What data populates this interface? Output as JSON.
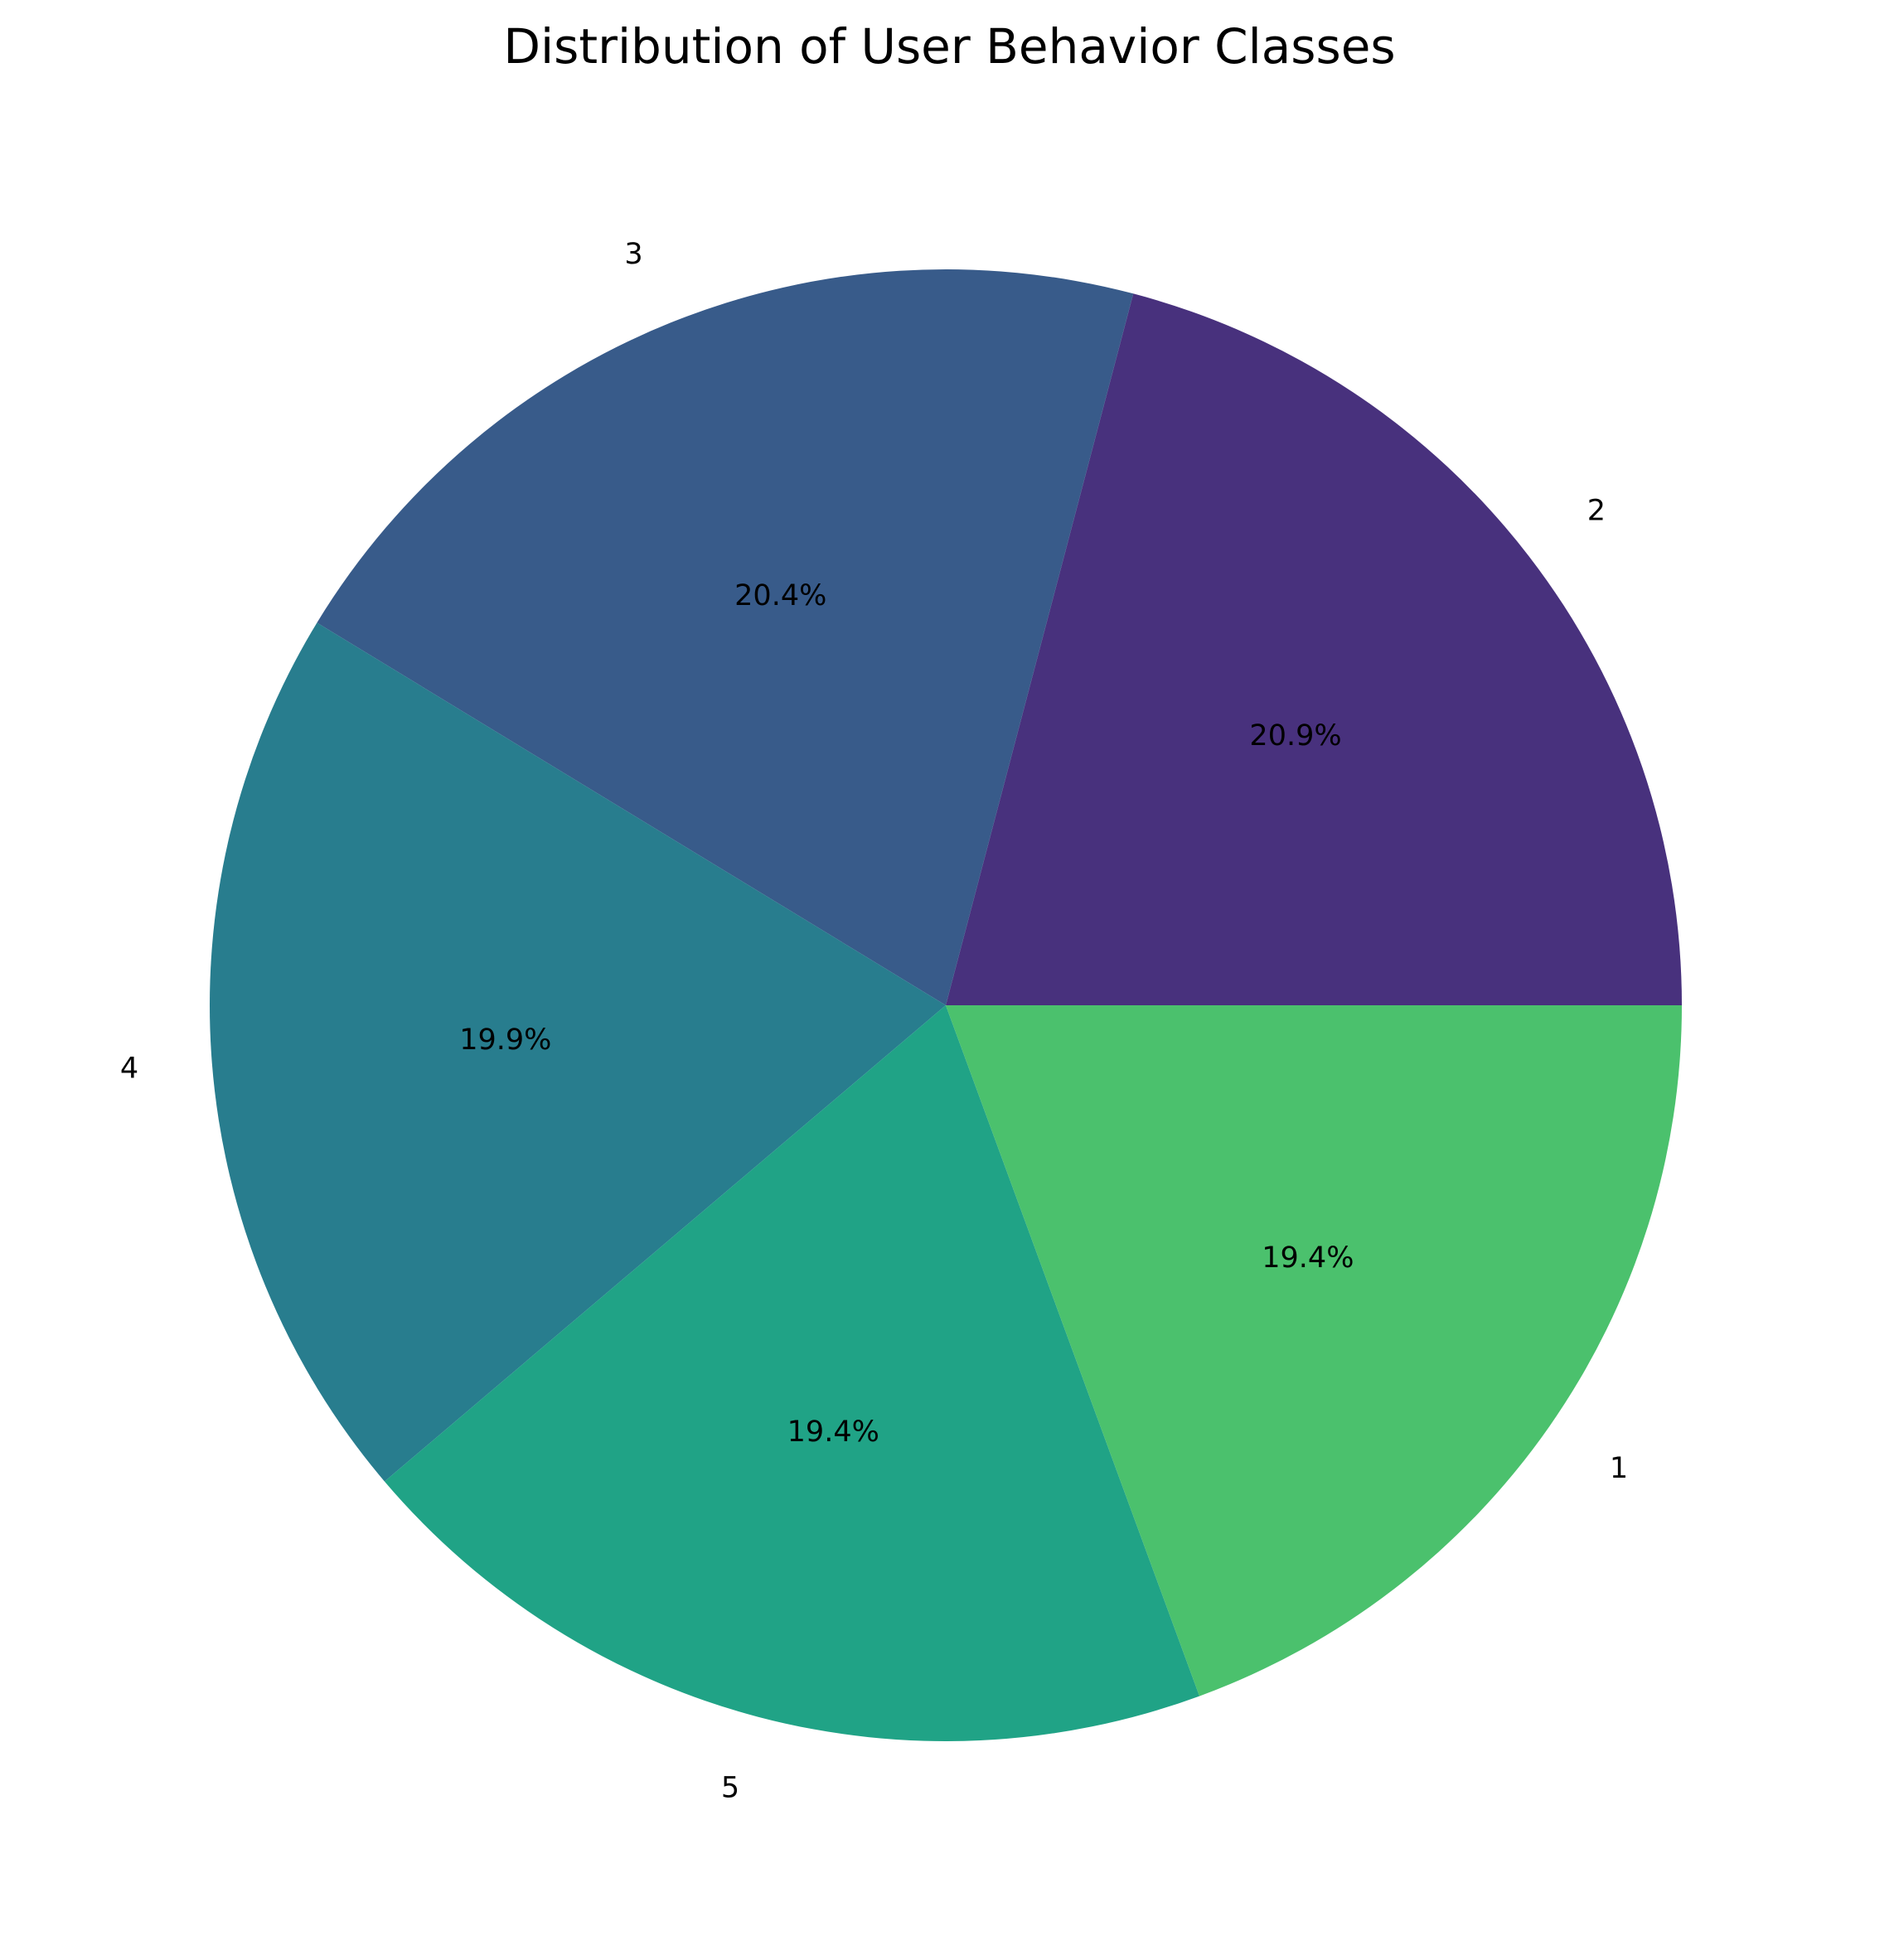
{
  "chart_data": {
    "type": "pie",
    "title": "Distribution of User Behavior Classes",
    "slices": [
      {
        "label": "2",
        "value": 20.9,
        "pct_label": "20.9%",
        "color": "#48317d"
      },
      {
        "label": "3",
        "value": 20.4,
        "pct_label": "20.4%",
        "color": "#385b8a"
      },
      {
        "label": "4",
        "value": 19.9,
        "pct_label": "19.9%",
        "color": "#287d8e"
      },
      {
        "label": "5",
        "value": 19.4,
        "pct_label": "19.4%",
        "color": "#20a386"
      },
      {
        "label": "1",
        "value": 19.4,
        "pct_label": "19.4%",
        "color": "#4bc16d"
      }
    ],
    "start_angle": 0,
    "direction": "counterclockwise",
    "legend": "none"
  }
}
